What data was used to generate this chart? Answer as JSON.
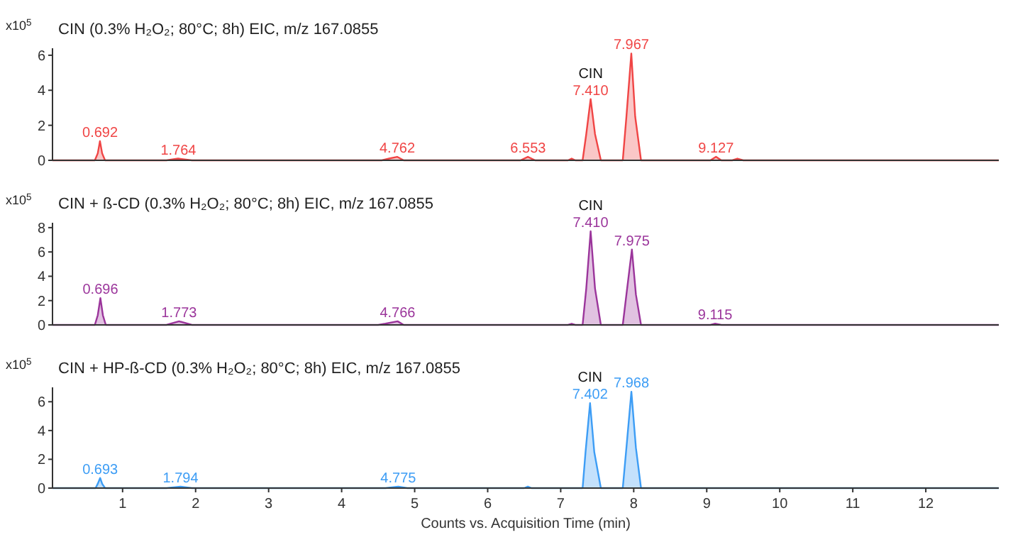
{
  "chart_data": [
    {
      "type": "area",
      "title": "CIN (0.3% H₂O₂; 80°C; 8h) EIC, m/z 167.0855",
      "ylabel": "x10$^{5}$",
      "xlim": [
        0.04,
        13
      ],
      "ylim": [
        0,
        6.4
      ],
      "yticks": [
        0,
        2,
        4,
        6
      ],
      "tick_labels": "y",
      "series": [
        {
          "color": "#f04545",
          "x": [
            0.04,
            0.62,
            0.66,
            0.69,
            0.72,
            0.76,
            1.6,
            1.76,
            1.95,
            4.55,
            4.65,
            4.76,
            4.85,
            6.45,
            6.55,
            6.65,
            7.1,
            7.15,
            7.2,
            7.3,
            7.35,
            7.41,
            7.47,
            7.55,
            7.85,
            7.9,
            7.967,
            8.02,
            8.1,
            9.05,
            9.127,
            9.2,
            9.35,
            9.42,
            9.5,
            13
          ],
          "values": [
            0,
            0,
            0.4,
            1.1,
            0.4,
            0,
            0,
            0.1,
            0,
            0,
            0.1,
            0.2,
            0,
            0,
            0.2,
            0,
            0,
            0.1,
            0,
            0,
            1.5,
            3.5,
            1.5,
            0,
            0,
            2.5,
            6.1,
            2.5,
            0,
            0,
            0.2,
            0,
            0,
            0.1,
            0,
            0
          ]
        }
      ],
      "annotations": [
        {
          "text": "0.692",
          "x": 0.692,
          "y": 1.1
        },
        {
          "text": "1.764",
          "x": 1.764,
          "y": 0.1
        },
        {
          "text": "4.762",
          "x": 4.762,
          "y": 0.2
        },
        {
          "text": "6.553",
          "x": 6.553,
          "y": 0.2
        },
        {
          "text": "7.410",
          "x": 7.41,
          "y": 3.5
        },
        {
          "text": "CIN",
          "x": 7.41,
          "y": 3.5
        },
        {
          "text": "7.967",
          "x": 7.967,
          "y": 6.1
        },
        {
          "text": "9.127",
          "x": 9.127,
          "y": 0.2
        }
      ]
    },
    {
      "type": "area",
      "title": "CIN + ß-CD (0.3% H₂O₂; 80°C; 8h) EIC, m/z 167.0855",
      "ylabel": "x10$^{5}$",
      "xlim": [
        0.04,
        13
      ],
      "ylim": [
        0,
        8.4
      ],
      "yticks": [
        0,
        2,
        4,
        6,
        8
      ],
      "tick_labels": "y",
      "series": [
        {
          "color": "#9b359b",
          "x": [
            0.04,
            0.62,
            0.66,
            0.696,
            0.73,
            0.77,
            1.6,
            1.773,
            1.95,
            4.5,
            4.6,
            4.766,
            4.85,
            7.1,
            7.15,
            7.2,
            7.3,
            7.35,
            7.41,
            7.47,
            7.55,
            7.85,
            7.9,
            7.975,
            8.03,
            8.1,
            9.05,
            9.115,
            9.2,
            13
          ],
          "values": [
            0,
            0,
            0.8,
            2.2,
            0.8,
            0,
            0,
            0.3,
            0,
            0,
            0.1,
            0.3,
            0,
            0,
            0.1,
            0,
            0,
            3,
            7.7,
            3,
            0,
            0,
            2.5,
            6.2,
            2.5,
            0,
            0,
            0.1,
            0,
            0
          ]
        }
      ],
      "annotations": [
        {
          "text": "0.696",
          "x": 0.696,
          "y": 2.2
        },
        {
          "text": "1.773",
          "x": 1.773,
          "y": 0.3
        },
        {
          "text": "4.766",
          "x": 4.766,
          "y": 0.3
        },
        {
          "text": "7.410",
          "x": 7.41,
          "y": 7.7
        },
        {
          "text": "CIN",
          "x": 7.41,
          "y": 7.7
        },
        {
          "text": "7.975",
          "x": 7.975,
          "y": 6.2
        },
        {
          "text": "9.115",
          "x": 9.115,
          "y": 0.1
        }
      ]
    },
    {
      "type": "area",
      "title": "CIN + HP-ß-CD (0.3% H₂O₂; 80°C; 8h) EIC, m/z 167.0855",
      "ylabel": "x10$^{5}$",
      "xlabel": "Counts vs. Acquisition Time (min)",
      "xlim": [
        0.04,
        13
      ],
      "ylim": [
        0,
        7
      ],
      "yticks": [
        0,
        2,
        4,
        6
      ],
      "xticks": [
        1,
        2,
        3,
        4,
        5,
        6,
        7,
        8,
        9,
        10,
        11,
        12
      ],
      "series": [
        {
          "color": "#3d9df5",
          "x": [
            0.04,
            0.63,
            0.66,
            0.693,
            0.72,
            0.76,
            1.6,
            1.794,
            1.95,
            4.6,
            4.775,
            4.9,
            6.5,
            6.55,
            6.6,
            7.3,
            7.34,
            7.402,
            7.46,
            7.55,
            7.85,
            7.9,
            7.968,
            8.03,
            8.1,
            13
          ],
          "values": [
            0,
            0,
            0.3,
            0.7,
            0.3,
            0,
            0,
            0.1,
            0,
            0,
            0.1,
            0,
            0,
            0.1,
            0,
            0,
            2.5,
            5.9,
            2.5,
            0,
            0,
            2.8,
            6.7,
            2.8,
            0,
            0
          ]
        }
      ],
      "annotations": [
        {
          "text": "0.693",
          "x": 0.693,
          "y": 0.7
        },
        {
          "text": "1.794",
          "x": 1.794,
          "y": 0.1
        },
        {
          "text": "4.775",
          "x": 4.775,
          "y": 0.1
        },
        {
          "text": "7.402",
          "x": 7.402,
          "y": 5.9
        },
        {
          "text": "CIN",
          "x": 7.402,
          "y": 5.9
        },
        {
          "text": "7.968",
          "x": 7.968,
          "y": 6.7
        }
      ]
    }
  ]
}
